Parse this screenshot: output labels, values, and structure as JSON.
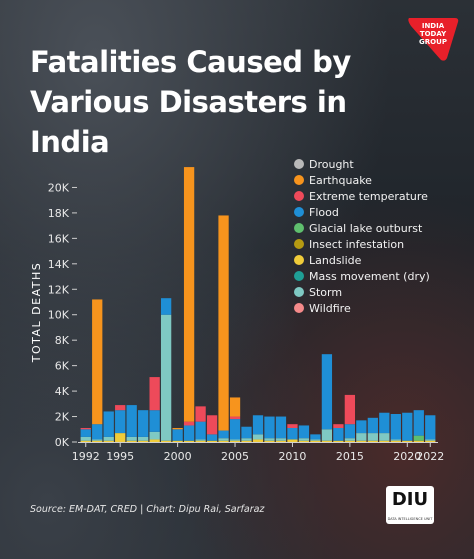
{
  "title": "Fatalities Caused by Various Disasters in India",
  "logo_text": "INDIA TODAY GROUP",
  "diu_logo": {
    "mark": "DIU",
    "small": "DATA INTELLIGENCE UNIT"
  },
  "source": "Source: EM-DAT, CRED | Chart: Dipu Rai, Sarfaraz",
  "colors": {
    "Drought": "#b9b9b9",
    "Earthquake": "#f7941d",
    "Extreme temperature": "#ee4a5a",
    "Flood": "#1f8fd6",
    "Glacial lake outburst": "#5fbf6e",
    "Insect infestation": "#b59a12",
    "Landslide": "#f0cc3a",
    "Mass movement (dry)": "#1f9f96",
    "Storm": "#7fc9c3",
    "Wildfire": "#f58a8a"
  },
  "chart_data": {
    "type": "bar",
    "stacked": true,
    "title": "Fatalities Caused by Various Disasters in India",
    "ylabel": "TOTAL DEATHS",
    "xlabel": "",
    "ylim": [
      0,
      22000
    ],
    "yticks": [
      0,
      2000,
      4000,
      6000,
      8000,
      10000,
      12000,
      14000,
      16000,
      18000,
      20000
    ],
    "ytick_labels": [
      "0K",
      "2K",
      "4K",
      "6K",
      "8K",
      "10K",
      "12K",
      "14K",
      "16K",
      "18K",
      "20K"
    ],
    "xtick_labels": [
      "1992",
      "1995",
      "2000",
      "2005",
      "2010",
      "2015",
      "2020",
      "2022"
    ],
    "legend": [
      "Drought",
      "Earthquake",
      "Extreme temperature",
      "Flood",
      "Glacial lake outburst",
      "Insect infestation",
      "Landslide",
      "Mass movement (dry)",
      "Storm",
      "Wildfire"
    ],
    "legend_position": "top-right",
    "grid": false,
    "categories": [
      "1992",
      "1993",
      "1994",
      "1995",
      "1996",
      "1997",
      "1998",
      "1999",
      "2000",
      "2001",
      "2002",
      "2003",
      "2004",
      "2005",
      "2006",
      "2007",
      "2008",
      "2009",
      "2010",
      "2011",
      "2012",
      "2013",
      "2014",
      "2015",
      "2016",
      "2017",
      "2018",
      "2019",
      "2020",
      "2021",
      "2022"
    ],
    "series": [
      {
        "name": "Drought",
        "values": [
          0,
          0,
          0,
          0,
          0,
          0,
          0,
          0,
          0,
          0,
          0,
          0,
          0,
          0,
          0,
          0,
          0,
          0,
          0,
          0,
          0,
          0,
          0,
          0,
          0,
          0,
          0,
          0,
          0,
          0,
          0
        ]
      },
      {
        "name": "Earthquake",
        "values": [
          0,
          9800,
          0,
          0,
          0,
          0,
          0,
          0,
          100,
          20000,
          0,
          0,
          16900,
          1500,
          0,
          0,
          0,
          0,
          0,
          0,
          0,
          0,
          0,
          0,
          0,
          0,
          0,
          0,
          0,
          0,
          0
        ]
      },
      {
        "name": "Extreme temperature",
        "values": [
          100,
          0,
          0,
          400,
          0,
          0,
          2600,
          0,
          0,
          300,
          1200,
          1500,
          0,
          200,
          0,
          0,
          0,
          0,
          300,
          0,
          0,
          0,
          300,
          2300,
          0,
          0,
          0,
          0,
          0,
          0,
          0
        ]
      },
      {
        "name": "Flood",
        "values": [
          600,
          1200,
          2000,
          1800,
          2500,
          2100,
          1700,
          1300,
          900,
          1200,
          1400,
          500,
          600,
          1600,
          900,
          1500,
          1700,
          1700,
          900,
          1000,
          400,
          5900,
          1000,
          1100,
          1000,
          1200,
          1600,
          2000,
          2200,
          2000,
          1900
        ]
      },
      {
        "name": "Glacial lake outburst",
        "values": [
          0,
          0,
          0,
          0,
          0,
          0,
          0,
          0,
          0,
          0,
          0,
          0,
          0,
          0,
          0,
          0,
          0,
          0,
          0,
          0,
          0,
          0,
          0,
          0,
          0,
          0,
          0,
          0,
          0,
          400,
          0
        ]
      },
      {
        "name": "Insect infestation",
        "values": [
          0,
          0,
          0,
          0,
          0,
          0,
          0,
          0,
          0,
          0,
          0,
          0,
          0,
          0,
          0,
          0,
          0,
          0,
          0,
          0,
          0,
          0,
          0,
          0,
          0,
          0,
          0,
          0,
          0,
          0,
          0
        ]
      },
      {
        "name": "Landslide",
        "values": [
          100,
          100,
          100,
          700,
          100,
          100,
          200,
          100,
          100,
          100,
          100,
          100,
          100,
          100,
          100,
          200,
          100,
          100,
          200,
          100,
          100,
          100,
          100,
          100,
          100,
          100,
          100,
          100,
          100,
          100,
          100
        ]
      },
      {
        "name": "Mass movement (dry)",
        "values": [
          0,
          0,
          0,
          0,
          0,
          0,
          0,
          0,
          0,
          0,
          0,
          0,
          0,
          0,
          0,
          0,
          0,
          0,
          0,
          0,
          0,
          0,
          0,
          0,
          0,
          0,
          0,
          0,
          0,
          0,
          0
        ]
      },
      {
        "name": "Storm",
        "values": [
          300,
          100,
          300,
          0,
          300,
          300,
          600,
          9900,
          0,
          0,
          100,
          0,
          200,
          100,
          200,
          400,
          200,
          200,
          0,
          200,
          100,
          900,
          0,
          200,
          600,
          600,
          600,
          100,
          0,
          0,
          100
        ]
      },
      {
        "name": "Wildfire",
        "values": [
          0,
          0,
          0,
          0,
          0,
          0,
          0,
          0,
          0,
          0,
          0,
          0,
          0,
          0,
          0,
          0,
          0,
          0,
          0,
          0,
          0,
          0,
          0,
          0,
          0,
          0,
          0,
          0,
          0,
          0,
          0
        ]
      }
    ]
  }
}
